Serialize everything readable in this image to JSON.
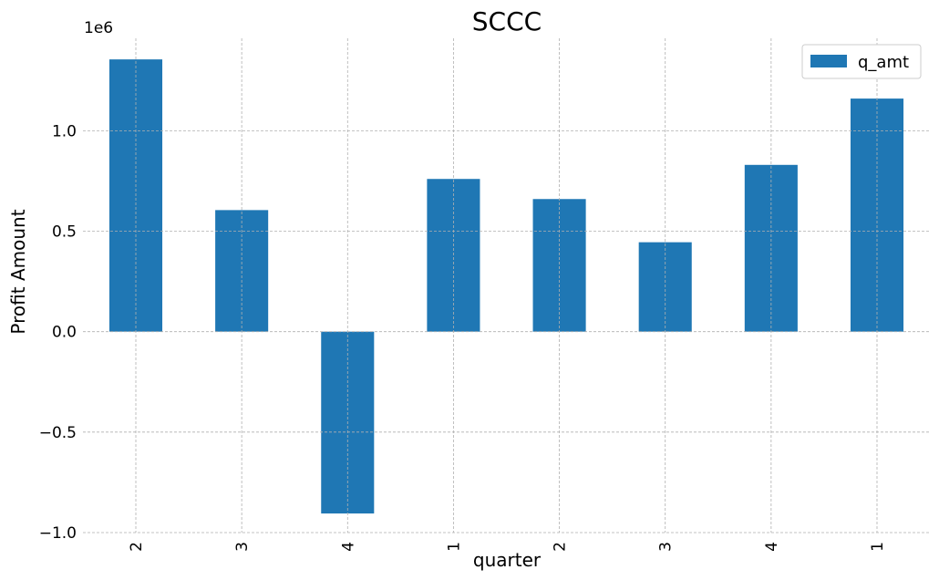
{
  "chart_data": {
    "type": "bar",
    "title": "SCCC",
    "xlabel": "quarter",
    "ylabel": "Profit Amount",
    "offset_text": "1e6",
    "categories": [
      "2",
      "3",
      "4",
      "1",
      "2",
      "3",
      "4",
      "1"
    ],
    "series": [
      {
        "name": "q_amt",
        "color": "#1f77b4",
        "values": [
          1355000,
          605000,
          -905000,
          760000,
          660000,
          445000,
          830000,
          1160000
        ]
      }
    ],
    "ylim": [
      -1000000,
      1460000
    ],
    "yticks": [
      -1000000,
      -500000,
      0,
      500000,
      1000000
    ],
    "ytick_labels": [
      "−1.0",
      "−0.5",
      "0.0",
      "0.5",
      "1.0"
    ],
    "grid": true,
    "legend_position": "top-right"
  }
}
